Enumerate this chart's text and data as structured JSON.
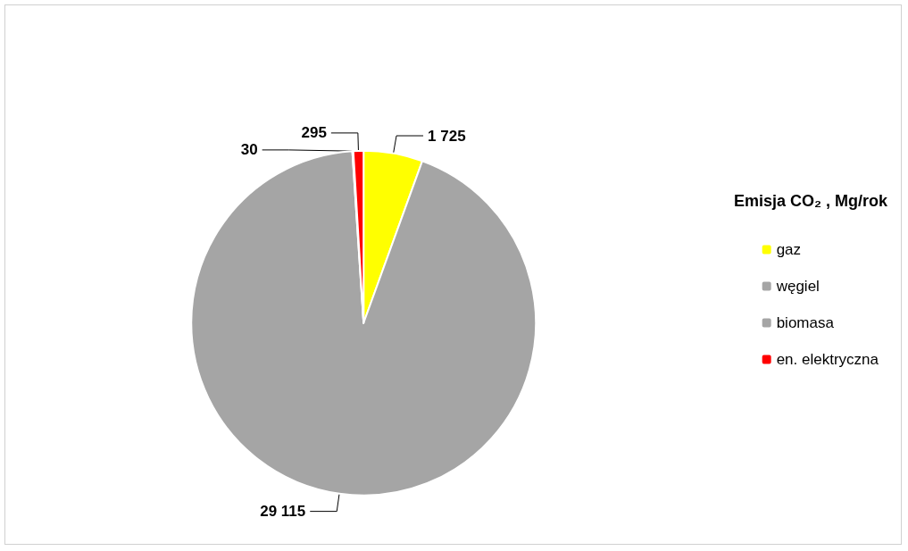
{
  "chart_data": {
    "type": "pie",
    "legend_title": "Emisja CO₂ , Mg/rok",
    "categories": [
      "gaz",
      "węgiel",
      "biomasa",
      "en. elektryczna"
    ],
    "values": [
      1725,
      29115,
      30,
      295
    ],
    "colors": [
      "#ffff00",
      "#a5a5a5",
      "#a5a5a5",
      "#ff0000"
    ],
    "value_labels": [
      "1 725",
      "29 115",
      "30",
      "295"
    ],
    "legend": "right"
  }
}
